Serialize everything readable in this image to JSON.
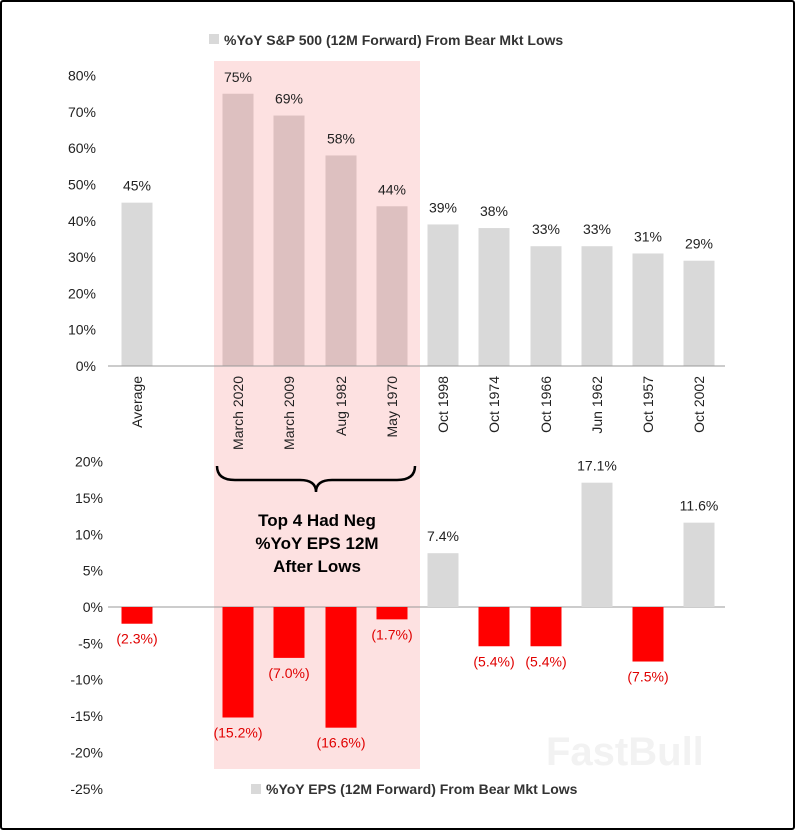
{
  "colors": {
    "bar_gray": "#d9d9d9",
    "bar_highlight": "#ddc0c0",
    "bar_negative": "#ff0000",
    "highlight_bg": "#fde1e1",
    "negative_label": "#e00000"
  },
  "watermark": "FastBull",
  "chart_data": [
    {
      "type": "bar",
      "legend": "%YoY S&P 500 (12M Forward) From Bear Mkt Lows",
      "categories": [
        "Average",
        "March 2020",
        "March 2009",
        "Aug 1982",
        "May 1970",
        "Oct 1998",
        "Oct 1974",
        "Oct 1966",
        "Jun 1962",
        "Oct 1957",
        "Oct 2002"
      ],
      "values": [
        45,
        75,
        69,
        58,
        44,
        39,
        38,
        33,
        33,
        31,
        29
      ],
      "value_labels": [
        "45%",
        "75%",
        "69%",
        "58%",
        "44%",
        "39%",
        "38%",
        "33%",
        "33%",
        "31%",
        "29%"
      ],
      "highlighted": [
        "March 2020",
        "March 2009",
        "Aug 1982",
        "May 1970"
      ],
      "ylim": [
        0,
        80
      ],
      "yticks": [
        "0%",
        "10%",
        "20%",
        "30%",
        "40%",
        "50%",
        "60%",
        "70%",
        "80%"
      ]
    },
    {
      "type": "bar",
      "legend": "%YoY EPS (12M Forward) From Bear Mkt Lows",
      "categories": [
        "Average",
        "March 2020",
        "March 2009",
        "Aug 1982",
        "May 1970",
        "Oct 1998",
        "Oct 1974",
        "Oct 1966",
        "Jun 1962",
        "Oct 1957",
        "Oct 2002"
      ],
      "values": [
        -2.3,
        -15.2,
        -7.0,
        -16.6,
        -1.7,
        7.4,
        -5.4,
        -5.4,
        17.1,
        -7.5,
        11.6
      ],
      "value_labels": [
        "(2.3%)",
        "(15.2%)",
        "(7.0%)",
        "(16.6%)",
        "(1.7%)",
        "7.4%",
        "(5.4%)",
        "(5.4%)",
        "17.1%",
        "(7.5%)",
        "11.6%"
      ],
      "ylim": [
        -25,
        20
      ],
      "yticks": [
        "-25%",
        "-20%",
        "-15%",
        "-10%",
        "-5%",
        "0%",
        "5%",
        "10%",
        "15%",
        "20%"
      ],
      "annotation": [
        "Top 4 Had Neg",
        "%YoY EPS 12M",
        "After Lows"
      ]
    }
  ]
}
